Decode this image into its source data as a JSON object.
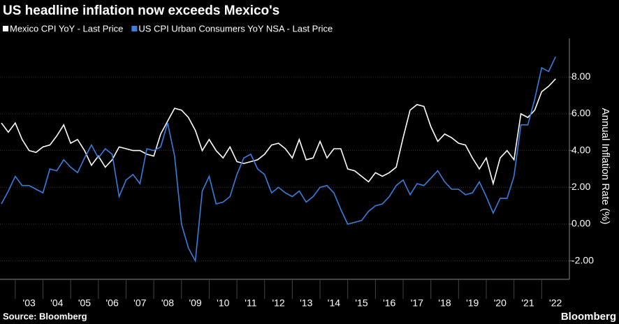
{
  "chart_data": {
    "type": "line",
    "title": "US headline inflation now exceeds Mexico's",
    "y_label": "Annual Inflation Rate (%)",
    "source": "Source: Bloomberg",
    "brand": "Bloomberg",
    "x": [
      2002.5,
      2002.75,
      2003,
      2003.25,
      2003.5,
      2003.75,
      2004,
      2004.25,
      2004.5,
      2004.75,
      2005,
      2005.25,
      2005.5,
      2005.75,
      2006,
      2006.25,
      2006.5,
      2006.75,
      2007,
      2007.25,
      2007.5,
      2007.75,
      2008,
      2008.25,
      2008.5,
      2008.75,
      2009,
      2009.25,
      2009.5,
      2009.75,
      2010,
      2010.25,
      2010.5,
      2010.75,
      2011,
      2011.25,
      2011.5,
      2011.75,
      2012,
      2012.25,
      2012.5,
      2012.75,
      2013,
      2013.25,
      2013.5,
      2013.75,
      2014,
      2014.25,
      2014.5,
      2014.75,
      2015,
      2015.25,
      2015.5,
      2015.75,
      2016,
      2016.25,
      2016.5,
      2016.75,
      2017,
      2017.25,
      2017.5,
      2017.75,
      2018,
      2018.25,
      2018.5,
      2018.75,
      2019,
      2019.25,
      2019.5,
      2019.75,
      2020,
      2020.25,
      2020.5,
      2020.75,
      2021,
      2021.25,
      2021.5,
      2021.75,
      2022,
      2022.25,
      2022.5
    ],
    "series": [
      {
        "name": "Mexico CPI YoY - Last Price",
        "color": "#ffffff",
        "values": [
          5.5,
          5.0,
          5.5,
          4.6,
          4.0,
          3.9,
          4.2,
          4.3,
          4.8,
          5.4,
          4.4,
          4.6,
          4.0,
          3.2,
          3.7,
          3.1,
          3.5,
          4.2,
          4.1,
          4.0,
          4.0,
          3.8,
          3.7,
          4.9,
          5.6,
          6.3,
          6.2,
          5.8,
          5.1,
          4.0,
          4.6,
          4.0,
          3.6,
          4.2,
          3.4,
          3.3,
          3.4,
          3.5,
          3.8,
          4.3,
          4.4,
          4.1,
          3.6,
          4.6,
          3.5,
          3.6,
          4.5,
          3.6,
          4.1,
          4.1,
          3.0,
          2.9,
          2.6,
          2.3,
          2.8,
          2.6,
          2.8,
          3.1,
          4.7,
          6.2,
          6.5,
          6.4,
          5.3,
          4.5,
          4.9,
          4.7,
          4.4,
          4.3,
          3.6,
          3.0,
          3.6,
          2.2,
          3.6,
          4.0,
          3.5,
          6.0,
          5.8,
          6.2,
          7.2,
          7.5,
          7.9
        ]
      },
      {
        "name": "US CPI Urban Consumers YoY NSA - Last Price",
        "color": "#3b7ddd",
        "values": [
          1.1,
          1.8,
          2.6,
          2.1,
          2.1,
          1.9,
          1.7,
          3.0,
          2.9,
          3.5,
          3.1,
          2.8,
          3.6,
          4.3,
          3.6,
          4.1,
          3.8,
          1.5,
          2.4,
          2.7,
          2.2,
          4.1,
          4.0,
          4.2,
          5.5,
          3.7,
          0.0,
          -1.3,
          -2.0,
          1.8,
          2.6,
          1.1,
          1.2,
          1.5,
          2.7,
          3.6,
          3.8,
          3.0,
          2.7,
          1.7,
          2.0,
          1.7,
          1.5,
          1.8,
          1.2,
          1.5,
          2.0,
          2.1,
          1.7,
          0.8,
          0.0,
          0.1,
          0.2,
          0.7,
          1.0,
          1.1,
          1.5,
          2.1,
          2.4,
          1.6,
          2.2,
          2.1,
          2.5,
          2.9,
          2.3,
          1.9,
          1.9,
          1.6,
          1.7,
          2.3,
          1.5,
          0.6,
          1.4,
          1.4,
          2.6,
          5.4,
          5.4,
          6.8,
          8.5,
          8.3,
          9.1
        ]
      }
    ],
    "xlim": [
      2002.45,
      2023.0
    ],
    "xticks": [
      {
        "value": 2003.5,
        "label": "'03"
      },
      {
        "value": 2004.5,
        "label": "'04"
      },
      {
        "value": 2005.5,
        "label": "'05"
      },
      {
        "value": 2006.5,
        "label": "'06"
      },
      {
        "value": 2007.5,
        "label": "'07"
      },
      {
        "value": 2008.5,
        "label": "'08"
      },
      {
        "value": 2009.5,
        "label": "'09"
      },
      {
        "value": 2010.5,
        "label": "'10"
      },
      {
        "value": 2011.5,
        "label": "'11"
      },
      {
        "value": 2012.5,
        "label": "'12"
      },
      {
        "value": 2013.5,
        "label": "'13"
      },
      {
        "value": 2014.5,
        "label": "'14"
      },
      {
        "value": 2015.5,
        "label": "'15"
      },
      {
        "value": 2016.5,
        "label": "'16"
      },
      {
        "value": 2017.5,
        "label": "'17"
      },
      {
        "value": 2018.5,
        "label": "'18"
      },
      {
        "value": 2019.5,
        "label": "'19"
      },
      {
        "value": 2020.5,
        "label": "'20"
      },
      {
        "value": 2021.5,
        "label": "'21"
      },
      {
        "value": 2022.5,
        "label": "'22"
      }
    ],
    "ylim": [
      -3.0,
      10.1
    ],
    "yticks": [
      {
        "value": -2,
        "label": "-2.00"
      },
      {
        "value": 0,
        "label": "0.00"
      },
      {
        "value": 2,
        "label": "2.00"
      },
      {
        "value": 4,
        "label": "4.00"
      },
      {
        "value": 6,
        "label": "6.00"
      },
      {
        "value": 8,
        "label": "8.00"
      }
    ],
    "grid": true
  }
}
